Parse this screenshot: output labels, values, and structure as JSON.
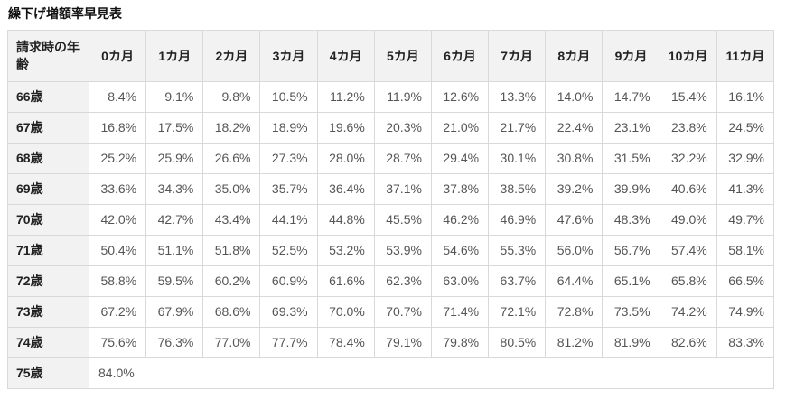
{
  "page": {
    "title": "繰下げ増額率早見表"
  },
  "table": {
    "corner_header": "請求時の年齢",
    "month_headers": [
      "0カ月",
      "1カ月",
      "2カ月",
      "3カ月",
      "4カ月",
      "5カ月",
      "6カ月",
      "7カ月",
      "8カ月",
      "9カ月",
      "10カ月",
      "11カ月"
    ],
    "rows": [
      {
        "age": "66歳",
        "values": [
          "8.4%",
          "9.1%",
          "9.8%",
          "10.5%",
          "11.2%",
          "11.9%",
          "12.6%",
          "13.3%",
          "14.0%",
          "14.7%",
          "15.4%",
          "16.1%"
        ]
      },
      {
        "age": "67歳",
        "values": [
          "16.8%",
          "17.5%",
          "18.2%",
          "18.9%",
          "19.6%",
          "20.3%",
          "21.0%",
          "21.7%",
          "22.4%",
          "23.1%",
          "23.8%",
          "24.5%"
        ]
      },
      {
        "age": "68歳",
        "values": [
          "25.2%",
          "25.9%",
          "26.6%",
          "27.3%",
          "28.0%",
          "28.7%",
          "29.4%",
          "30.1%",
          "30.8%",
          "31.5%",
          "32.2%",
          "32.9%"
        ]
      },
      {
        "age": "69歳",
        "values": [
          "33.6%",
          "34.3%",
          "35.0%",
          "35.7%",
          "36.4%",
          "37.1%",
          "37.8%",
          "38.5%",
          "39.2%",
          "39.9%",
          "40.6%",
          "41.3%"
        ]
      },
      {
        "age": "70歳",
        "values": [
          "42.0%",
          "42.7%",
          "43.4%",
          "44.1%",
          "44.8%",
          "45.5%",
          "46.2%",
          "46.9%",
          "47.6%",
          "48.3%",
          "49.0%",
          "49.7%"
        ]
      },
      {
        "age": "71歳",
        "values": [
          "50.4%",
          "51.1%",
          "51.8%",
          "52.5%",
          "53.2%",
          "53.9%",
          "54.6%",
          "55.3%",
          "56.0%",
          "56.7%",
          "57.4%",
          "58.1%"
        ]
      },
      {
        "age": "72歳",
        "values": [
          "58.8%",
          "59.5%",
          "60.2%",
          "60.9%",
          "61.6%",
          "62.3%",
          "63.0%",
          "63.7%",
          "64.4%",
          "65.1%",
          "65.8%",
          "66.5%"
        ]
      },
      {
        "age": "73歳",
        "values": [
          "67.2%",
          "67.9%",
          "68.6%",
          "69.3%",
          "70.0%",
          "70.7%",
          "71.4%",
          "72.1%",
          "72.8%",
          "73.5%",
          "74.2%",
          "74.9%"
        ]
      },
      {
        "age": "74歳",
        "values": [
          "75.6%",
          "76.3%",
          "77.0%",
          "77.7%",
          "78.4%",
          "79.1%",
          "79.8%",
          "80.5%",
          "81.2%",
          "81.9%",
          "82.6%",
          "83.3%"
        ]
      },
      {
        "age": "75歳",
        "values": [
          "84.0%"
        ],
        "merged": true
      }
    ],
    "colors": {
      "header_background": "#f2f2f2",
      "border": "#d9d9d9",
      "header_text": "#222222",
      "value_text": "#555555",
      "title_text": "#111111",
      "cell_background": "#ffffff"
    }
  },
  "chart_data": {
    "type": "table",
    "title": "繰下げ増額率早見表",
    "row_header_label": "請求時の年齢",
    "columns": [
      "0カ月",
      "1カ月",
      "2カ月",
      "3カ月",
      "4カ月",
      "5カ月",
      "6カ月",
      "7カ月",
      "8カ月",
      "9カ月",
      "10カ月",
      "11カ月"
    ],
    "row_labels": [
      "66歳",
      "67歳",
      "68歳",
      "69歳",
      "70歳",
      "71歳",
      "72歳",
      "73歳",
      "74歳",
      "75歳"
    ],
    "values_percent": [
      [
        8.4,
        9.1,
        9.8,
        10.5,
        11.2,
        11.9,
        12.6,
        13.3,
        14.0,
        14.7,
        15.4,
        16.1
      ],
      [
        16.8,
        17.5,
        18.2,
        18.9,
        19.6,
        20.3,
        21.0,
        21.7,
        22.4,
        23.1,
        23.8,
        24.5
      ],
      [
        25.2,
        25.9,
        26.6,
        27.3,
        28.0,
        28.7,
        29.4,
        30.1,
        30.8,
        31.5,
        32.2,
        32.9
      ],
      [
        33.6,
        34.3,
        35.0,
        35.7,
        36.4,
        37.1,
        37.8,
        38.5,
        39.2,
        39.9,
        40.6,
        41.3
      ],
      [
        42.0,
        42.7,
        43.4,
        44.1,
        44.8,
        45.5,
        46.2,
        46.9,
        47.6,
        48.3,
        49.0,
        49.7
      ],
      [
        50.4,
        51.1,
        51.8,
        52.5,
        53.2,
        53.9,
        54.6,
        55.3,
        56.0,
        56.7,
        57.4,
        58.1
      ],
      [
        58.8,
        59.5,
        60.2,
        60.9,
        61.6,
        62.3,
        63.0,
        63.7,
        64.4,
        65.1,
        65.8,
        66.5
      ],
      [
        67.2,
        67.9,
        68.6,
        69.3,
        70.0,
        70.7,
        71.4,
        72.1,
        72.8,
        73.5,
        74.2,
        74.9
      ],
      [
        75.6,
        76.3,
        77.0,
        77.7,
        78.4,
        79.1,
        79.8,
        80.5,
        81.2,
        81.9,
        82.6,
        83.3
      ],
      [
        84.0
      ]
    ]
  }
}
